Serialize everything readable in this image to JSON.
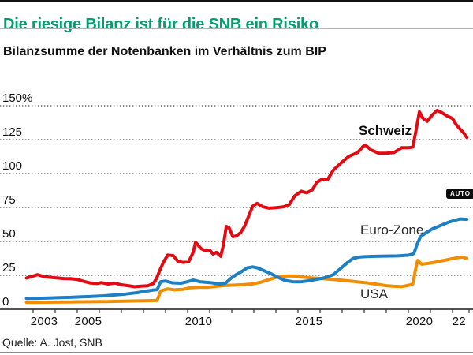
{
  "header": {
    "title": "Die riesige Bilanz ist für die SNB ein Risiko",
    "title_color": "#019e72",
    "subtitle": "Bilanzsumme der Notenbanken im Verhältnis zum BIP"
  },
  "auto_badge": {
    "label": "AUTO"
  },
  "footer": {
    "source": "Quelle: A. Jost, SNB"
  },
  "chart_data": {
    "type": "line",
    "title": "Bilanzsumme der Notenbanken im Verhältnis zum BIP",
    "unit": "% des BIP",
    "grid": "horizontal-dotted",
    "legend_position": "inline-labels",
    "x_range": [
      2002.7,
      2022.65
    ],
    "ylim": [
      0,
      160
    ],
    "y_ticks": [
      {
        "label": "150%",
        "value": 150
      },
      {
        "label": "125",
        "value": 125
      },
      {
        "label": "100",
        "value": 100
      },
      {
        "label": "75",
        "value": 75
      },
      {
        "label": "50",
        "value": 50
      },
      {
        "label": "25",
        "value": 25
      },
      {
        "label": "0",
        "value": 0
      }
    ],
    "x_ticks": [
      {
        "label": "2003",
        "year": 2003.5
      },
      {
        "label": "2005",
        "year": 2005.5
      },
      {
        "label": "2010",
        "year": 2010.5
      },
      {
        "label": "2015",
        "year": 2015.5
      },
      {
        "label": "2020",
        "year": 2020.5
      },
      {
        "label": "22",
        "year": 2022.3
      }
    ],
    "series": [
      {
        "name": "Schweiz",
        "color": "#e30b13",
        "label_bold": true,
        "label_pos": {
          "x": 455,
          "y": 171
        },
        "points": [
          [
            2002.7,
            23
          ],
          [
            2003.0,
            24.5
          ],
          [
            2003.2,
            25.5
          ],
          [
            2003.5,
            24
          ],
          [
            2003.8,
            23.5
          ],
          [
            2004.1,
            23
          ],
          [
            2004.4,
            22.6
          ],
          [
            2004.7,
            22.5
          ],
          [
            2005.0,
            22
          ],
          [
            2005.3,
            20.5
          ],
          [
            2005.6,
            19.3
          ],
          [
            2005.9,
            19
          ],
          [
            2006.1,
            19.6
          ],
          [
            2006.4,
            18.6
          ],
          [
            2006.7,
            19.3
          ],
          [
            2007.0,
            18
          ],
          [
            2007.3,
            17.4
          ],
          [
            2007.6,
            16.6
          ],
          [
            2007.9,
            17
          ],
          [
            2008.2,
            17.3
          ],
          [
            2008.45,
            19
          ],
          [
            2008.6,
            23
          ],
          [
            2008.75,
            29
          ],
          [
            2008.9,
            34.5
          ],
          [
            2009.1,
            40
          ],
          [
            2009.35,
            39.5
          ],
          [
            2009.55,
            35.5
          ],
          [
            2009.8,
            34.5
          ],
          [
            2010.05,
            35
          ],
          [
            2010.25,
            42
          ],
          [
            2010.36,
            49.4
          ],
          [
            2010.6,
            44.8
          ],
          [
            2010.8,
            43
          ],
          [
            2011.0,
            43.6
          ],
          [
            2011.15,
            40.7
          ],
          [
            2011.3,
            41.9
          ],
          [
            2011.5,
            39
          ],
          [
            2011.63,
            48
          ],
          [
            2011.75,
            61
          ],
          [
            2011.88,
            60
          ],
          [
            2012.05,
            53.5
          ],
          [
            2012.2,
            54
          ],
          [
            2012.4,
            56.4
          ],
          [
            2012.57,
            61
          ],
          [
            2012.75,
            68
          ],
          [
            2012.95,
            76
          ],
          [
            2013.15,
            78
          ],
          [
            2013.4,
            75.5
          ],
          [
            2013.7,
            74.5
          ],
          [
            2014.0,
            74.8
          ],
          [
            2014.35,
            75.5
          ],
          [
            2014.6,
            77
          ],
          [
            2014.85,
            83.5
          ],
          [
            2015.15,
            87
          ],
          [
            2015.4,
            85.8
          ],
          [
            2015.65,
            88
          ],
          [
            2015.85,
            93.5
          ],
          [
            2016.1,
            96
          ],
          [
            2016.35,
            95.8
          ],
          [
            2016.6,
            102.5
          ],
          [
            2017.0,
            108.5
          ],
          [
            2017.3,
            112.6
          ],
          [
            2017.7,
            115.5
          ],
          [
            2017.95,
            120
          ],
          [
            2018.05,
            121
          ],
          [
            2018.3,
            117.5
          ],
          [
            2018.65,
            115
          ],
          [
            2019.0,
            115
          ],
          [
            2019.35,
            115.5
          ],
          [
            2019.7,
            119
          ],
          [
            2020.0,
            119
          ],
          [
            2020.2,
            119.5
          ],
          [
            2020.35,
            132
          ],
          [
            2020.5,
            145.5
          ],
          [
            2020.65,
            141
          ],
          [
            2020.85,
            138.5
          ],
          [
            2021.1,
            143.5
          ],
          [
            2021.3,
            146.5
          ],
          [
            2021.5,
            145
          ],
          [
            2021.75,
            142.5
          ],
          [
            2022.0,
            140.5
          ],
          [
            2022.15,
            136.5
          ],
          [
            2022.3,
            133.5
          ],
          [
            2022.5,
            130
          ],
          [
            2022.65,
            126.5
          ]
        ]
      },
      {
        "name": "Euro-Zone",
        "color": "#1d80c4",
        "label_bold": false,
        "label_pos": {
          "x": 457,
          "y": 297
        },
        "points": [
          [
            2002.7,
            8
          ],
          [
            2003.2,
            8.1
          ],
          [
            2003.7,
            8.3
          ],
          [
            2004.2,
            8.6
          ],
          [
            2004.7,
            8.8
          ],
          [
            2005.2,
            9.2
          ],
          [
            2005.7,
            9.5
          ],
          [
            2006.2,
            9.9
          ],
          [
            2006.7,
            10.5
          ],
          [
            2007.2,
            11.2
          ],
          [
            2007.7,
            12.2
          ],
          [
            2008.1,
            13.3
          ],
          [
            2008.45,
            14.2
          ],
          [
            2008.62,
            14.5
          ],
          [
            2008.78,
            20.3
          ],
          [
            2009.0,
            20.8
          ],
          [
            2009.3,
            19.5
          ],
          [
            2009.7,
            19.2
          ],
          [
            2010.0,
            20.3
          ],
          [
            2010.25,
            21.5
          ],
          [
            2010.55,
            20.3
          ],
          [
            2010.8,
            19.9
          ],
          [
            2011.1,
            19.5
          ],
          [
            2011.45,
            18.6
          ],
          [
            2011.7,
            19
          ],
          [
            2011.95,
            22.7
          ],
          [
            2012.2,
            25.5
          ],
          [
            2012.45,
            27.8
          ],
          [
            2012.7,
            30.5
          ],
          [
            2012.95,
            31.2
          ],
          [
            2013.15,
            30.5
          ],
          [
            2013.45,
            28.5
          ],
          [
            2013.8,
            26
          ],
          [
            2014.1,
            23.5
          ],
          [
            2014.4,
            21.3
          ],
          [
            2014.75,
            20.3
          ],
          [
            2015.1,
            20.2
          ],
          [
            2015.5,
            21
          ],
          [
            2015.9,
            22.2
          ],
          [
            2016.25,
            23.3
          ],
          [
            2016.6,
            25.5
          ],
          [
            2017.0,
            31
          ],
          [
            2017.25,
            34.5
          ],
          [
            2017.5,
            37.5
          ],
          [
            2017.8,
            38.5
          ],
          [
            2018.1,
            38.8
          ],
          [
            2018.5,
            39
          ],
          [
            2019.0,
            39.2
          ],
          [
            2019.5,
            39.3
          ],
          [
            2020.0,
            39.8
          ],
          [
            2020.25,
            41
          ],
          [
            2020.4,
            48
          ],
          [
            2020.55,
            53.5
          ],
          [
            2020.8,
            56.4
          ],
          [
            2021.1,
            59.3
          ],
          [
            2021.45,
            61.6
          ],
          [
            2021.8,
            64
          ],
          [
            2022.1,
            65.5
          ],
          [
            2022.35,
            66.5
          ],
          [
            2022.65,
            66.2
          ]
        ]
      },
      {
        "name": "USA",
        "color": "#f28d00",
        "label_bold": false,
        "label_pos": {
          "x": 457,
          "y": 378
        },
        "points": [
          [
            2002.7,
            5.2
          ],
          [
            2003.3,
            5.2
          ],
          [
            2003.9,
            5.3
          ],
          [
            2004.5,
            5.4
          ],
          [
            2005.1,
            5.5
          ],
          [
            2005.7,
            5.6
          ],
          [
            2006.3,
            5.7
          ],
          [
            2006.9,
            5.9
          ],
          [
            2007.5,
            6.1
          ],
          [
            2008.0,
            6.2
          ],
          [
            2008.4,
            6.4
          ],
          [
            2008.62,
            6.5
          ],
          [
            2008.78,
            13.5
          ],
          [
            2009.1,
            15
          ],
          [
            2009.4,
            14.3
          ],
          [
            2009.8,
            14.7
          ],
          [
            2010.1,
            15.8
          ],
          [
            2010.5,
            16.2
          ],
          [
            2010.9,
            16.1
          ],
          [
            2011.3,
            16.9
          ],
          [
            2011.7,
            17.5
          ],
          [
            2012.1,
            17.8
          ],
          [
            2012.5,
            18.1
          ],
          [
            2012.9,
            18.6
          ],
          [
            2013.3,
            19.8
          ],
          [
            2013.8,
            22.5
          ],
          [
            2014.2,
            24.3
          ],
          [
            2014.55,
            24.6
          ],
          [
            2014.9,
            24.4
          ],
          [
            2015.25,
            23.6
          ],
          [
            2015.6,
            23.1
          ],
          [
            2016.0,
            22.7
          ],
          [
            2016.45,
            22.1
          ],
          [
            2016.9,
            21.5
          ],
          [
            2017.35,
            20.8
          ],
          [
            2017.8,
            20
          ],
          [
            2018.2,
            19.3
          ],
          [
            2018.6,
            18.4
          ],
          [
            2019.0,
            17.4
          ],
          [
            2019.35,
            16.9
          ],
          [
            2019.7,
            16.7
          ],
          [
            2020.05,
            17.8
          ],
          [
            2020.2,
            18.6
          ],
          [
            2020.32,
            29
          ],
          [
            2020.42,
            36
          ],
          [
            2020.6,
            33.2
          ],
          [
            2020.9,
            33.8
          ],
          [
            2021.2,
            34.6
          ],
          [
            2021.55,
            35.8
          ],
          [
            2021.9,
            37
          ],
          [
            2022.2,
            37.9
          ],
          [
            2022.45,
            38.4
          ],
          [
            2022.65,
            37.4
          ]
        ]
      }
    ]
  }
}
